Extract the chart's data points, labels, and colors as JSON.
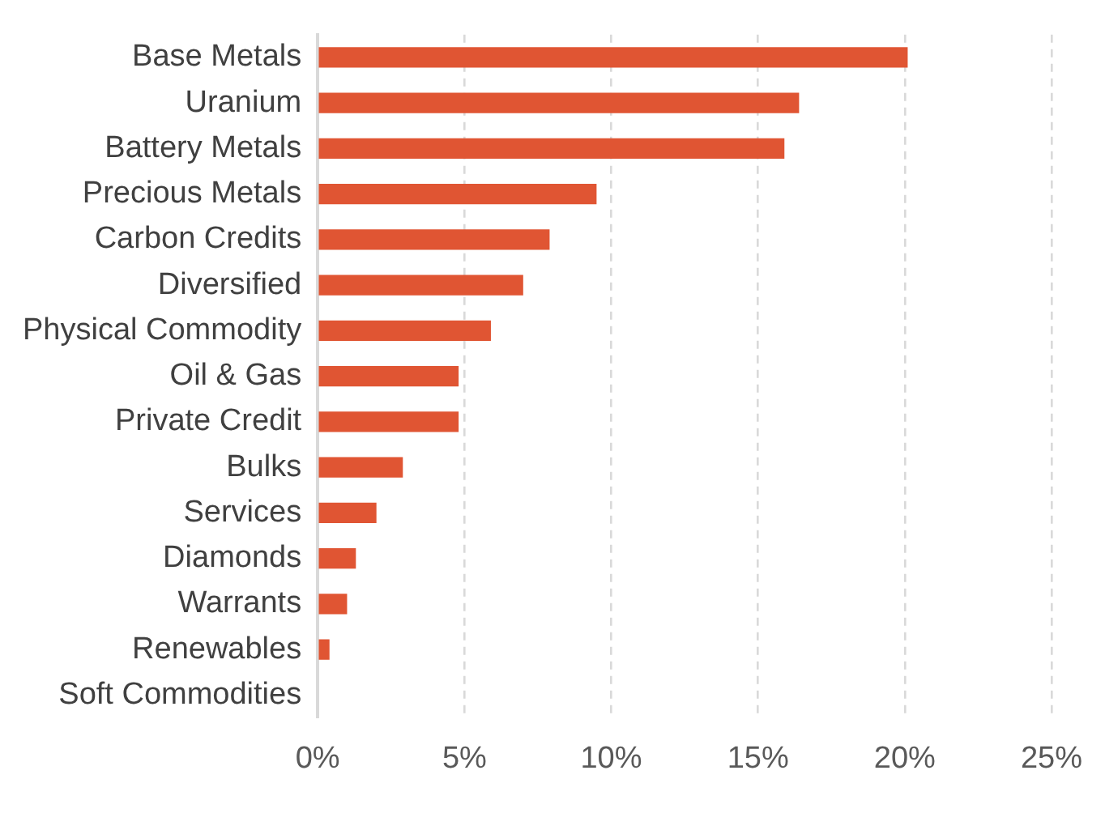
{
  "chart_data": {
    "type": "bar",
    "orientation": "horizontal",
    "categories": [
      "Base Metals",
      "Uranium",
      "Battery Metals",
      "Precious Metals",
      "Carbon Credits",
      "Diversified",
      "Physical Commodity",
      "Oil & Gas",
      "Private Credit",
      "Bulks",
      "Services",
      "Diamonds",
      "Warrants",
      "Renewables",
      "Soft Commodities"
    ],
    "values": [
      20.1,
      16.4,
      15.9,
      9.5,
      7.9,
      7.0,
      5.9,
      4.8,
      4.8,
      2.9,
      2.0,
      1.3,
      1.0,
      0.4,
      0
    ],
    "color": "#e05533",
    "xlim": [
      0,
      25
    ],
    "xticks": [
      {
        "value": 0,
        "label": "0%"
      },
      {
        "value": 5,
        "label": "5%"
      },
      {
        "value": 10,
        "label": "10%"
      },
      {
        "value": 15,
        "label": "15%"
      },
      {
        "value": 20,
        "label": "20%"
      },
      {
        "value": 25,
        "label": "25%"
      }
    ],
    "grid": "x",
    "legend": false
  }
}
